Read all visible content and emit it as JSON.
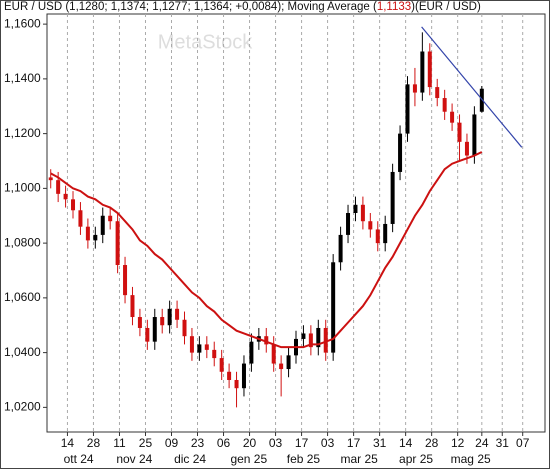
{
  "chart_data": {
    "type": "candlestick",
    "title": "EUR / USD (1,1280; 1,1374; 1,1277; 1,1364; +0,0084); Moving Average (",
    "ma_label": "1,1133",
    "title_end": ")(EUR / USD)",
    "watermark": "MetaStock",
    "x": [
      4,
      8,
      12,
      16,
      20,
      24,
      28,
      32,
      36,
      40,
      44,
      48,
      52,
      56,
      60,
      64,
      68,
      72,
      76,
      80,
      84,
      88,
      92,
      96,
      100,
      104,
      108,
      112,
      116,
      120,
      124,
      128,
      132,
      136,
      140,
      144,
      148,
      152,
      156,
      160,
      164,
      168,
      172,
      176,
      180,
      184,
      188,
      192,
      196,
      200,
      204,
      208,
      212,
      216,
      220,
      224,
      228,
      232,
      236
    ],
    "open": [
      1.104,
      1.103,
      1.098,
      1.096,
      1.092,
      1.086,
      1.081,
      1.083,
      1.09,
      1.088,
      1.072,
      1.061,
      1.053,
      1.049,
      1.044,
      1.053,
      1.05,
      1.056,
      1.052,
      1.046,
      1.04,
      1.043,
      1.041,
      1.038,
      1.033,
      1.03,
      1.027,
      1.036,
      1.044,
      1.046,
      1.043,
      1.036,
      1.034,
      1.039,
      1.045,
      1.047,
      1.042,
      1.049,
      1.04,
      1.073,
      1.083,
      1.091,
      1.094,
      1.088,
      1.085,
      1.08,
      1.087,
      1.106,
      1.12,
      1.138,
      1.135,
      1.15,
      1.137,
      1.133,
      1.128,
      1.124,
      1.117,
      1.112,
      1.128
    ],
    "high": [
      1.107,
      1.106,
      1.101,
      1.099,
      1.095,
      1.089,
      1.086,
      1.093,
      1.093,
      1.091,
      1.075,
      1.064,
      1.056,
      1.052,
      1.056,
      1.056,
      1.059,
      1.059,
      1.055,
      1.049,
      1.046,
      1.046,
      1.044,
      1.041,
      1.036,
      1.033,
      1.039,
      1.047,
      1.049,
      1.049,
      1.046,
      1.039,
      1.042,
      1.048,
      1.05,
      1.05,
      1.052,
      1.052,
      1.076,
      1.086,
      1.094,
      1.097,
      1.097,
      1.091,
      1.088,
      1.09,
      1.109,
      1.123,
      1.141,
      1.144,
      1.157,
      1.153,
      1.14,
      1.136,
      1.131,
      1.127,
      1.12,
      1.13,
      1.1374
    ],
    "low": [
      1.1,
      1.095,
      1.093,
      1.089,
      1.083,
      1.078,
      1.078,
      1.08,
      1.085,
      1.069,
      1.058,
      1.05,
      1.046,
      1.041,
      1.041,
      1.047,
      1.047,
      1.049,
      1.043,
      1.037,
      1.037,
      1.038,
      1.035,
      1.03,
      1.027,
      1.02,
      1.024,
      1.033,
      1.041,
      1.04,
      1.033,
      1.024,
      1.031,
      1.036,
      1.042,
      1.039,
      1.039,
      1.037,
      1.037,
      1.07,
      1.08,
      1.088,
      1.085,
      1.082,
      1.077,
      1.077,
      1.084,
      1.103,
      1.117,
      1.13,
      1.132,
      1.134,
      1.13,
      1.125,
      1.121,
      1.11,
      1.109,
      1.109,
      1.1277
    ],
    "close": [
      1.103,
      1.098,
      1.096,
      1.092,
      1.086,
      1.081,
      1.083,
      1.09,
      1.088,
      1.072,
      1.061,
      1.053,
      1.049,
      1.044,
      1.053,
      1.05,
      1.056,
      1.052,
      1.046,
      1.04,
      1.043,
      1.041,
      1.038,
      1.033,
      1.03,
      1.027,
      1.036,
      1.044,
      1.046,
      1.043,
      1.036,
      1.034,
      1.039,
      1.045,
      1.047,
      1.042,
      1.049,
      1.04,
      1.073,
      1.083,
      1.091,
      1.094,
      1.088,
      1.085,
      1.08,
      1.087,
      1.106,
      1.12,
      1.138,
      1.135,
      1.15,
      1.137,
      1.133,
      1.128,
      1.124,
      1.117,
      1.112,
      1.127,
      1.1364
    ],
    "up_color": "#000000",
    "down_color": "#d01010",
    "moving_average": {
      "color": "#cc1111",
      "values": [
        1.1055,
        1.104,
        1.102,
        1.1,
        1.099,
        1.097,
        1.096,
        1.094,
        1.093,
        1.091,
        1.088,
        1.085,
        1.081,
        1.079,
        1.076,
        1.074,
        1.071,
        1.068,
        1.065,
        1.062,
        1.06,
        1.057,
        1.055,
        1.052,
        1.05,
        1.048,
        1.047,
        1.046,
        1.045,
        1.044,
        1.043,
        1.042,
        1.042,
        1.042,
        1.042,
        1.043,
        1.043,
        1.044,
        1.045,
        1.048,
        1.051,
        1.054,
        1.057,
        1.061,
        1.066,
        1.071,
        1.075,
        1.08,
        1.085,
        1.09,
        1.094,
        1.099,
        1.103,
        1.107,
        1.109,
        1.11,
        1.111,
        1.112,
        1.1133
      ]
    },
    "trendline": {
      "color": "#3344aa",
      "x": [
        203.6,
        257.5
      ],
      "values": [
        1.159,
        1.115
      ]
    },
    "xlim": [
      2,
      270
    ],
    "ylim": [
      1.011,
      1.1637
    ],
    "yticks": [
      {
        "value": 1.02,
        "label": "1,0200"
      },
      {
        "value": 1.04,
        "label": "1,0400"
      },
      {
        "value": 1.06,
        "label": "1,0600"
      },
      {
        "value": 1.08,
        "label": "1,0800"
      },
      {
        "value": 1.1,
        "label": "1,1000"
      },
      {
        "value": 1.12,
        "label": "1,1200"
      },
      {
        "value": 1.14,
        "label": "1,1400"
      },
      {
        "value": 1.16,
        "label": "1,1600"
      }
    ],
    "xticks": [
      {
        "value": 13,
        "label": "14"
      },
      {
        "value": 27,
        "label": "28"
      },
      {
        "value": 41,
        "label": "11"
      },
      {
        "value": 55,
        "label": "25"
      },
      {
        "value": 69,
        "label": "09"
      },
      {
        "value": 83,
        "label": "23"
      },
      {
        "value": 97,
        "label": "06"
      },
      {
        "value": 111,
        "label": "20"
      },
      {
        "value": 125,
        "label": "03"
      },
      {
        "value": 139,
        "label": "17"
      },
      {
        "value": 153,
        "label": "03"
      },
      {
        "value": 167,
        "label": "17"
      },
      {
        "value": 181,
        "label": "31"
      },
      {
        "value": 195,
        "label": "14"
      },
      {
        "value": 209,
        "label": "28"
      },
      {
        "value": 223,
        "label": "12"
      },
      {
        "value": 236,
        "label": "24"
      },
      {
        "value": 247,
        "label": "31"
      },
      {
        "value": 258,
        "label": "07"
      }
    ],
    "month_labels": [
      {
        "value": 19,
        "label": "ott 24"
      },
      {
        "value": 49,
        "label": "nov 24"
      },
      {
        "value": 79,
        "label": "dic 24"
      },
      {
        "value": 110.6,
        "label": "gen 25"
      },
      {
        "value": 140,
        "label": "feb 25"
      },
      {
        "value": 170,
        "label": "mar 25"
      },
      {
        "value": 200.6,
        "label": "apr 25"
      },
      {
        "value": 230,
        "label": "mag 25"
      }
    ],
    "grid": true
  }
}
